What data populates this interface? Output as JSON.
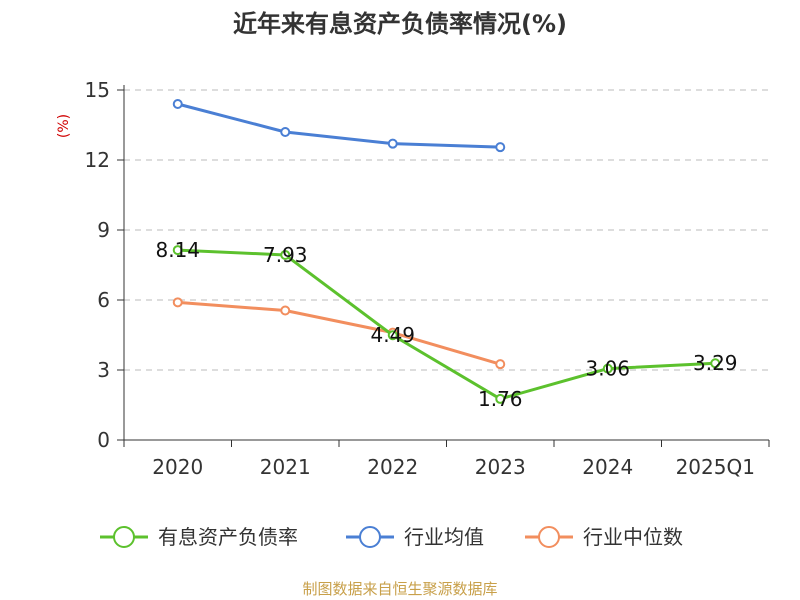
{
  "chart_data": {
    "type": "line",
    "title": "近年来有息资产负债率情况(%)",
    "ylabel": "(%)",
    "xlabel": "",
    "categories": [
      "2020",
      "2021",
      "2022",
      "2023",
      "2024",
      "2025Q1"
    ],
    "ylim": [
      0,
      15
    ],
    "yticks": [
      0,
      3,
      6,
      9,
      12,
      15
    ],
    "grid": true,
    "legend_position": "bottom",
    "series": [
      {
        "name": "有息资产负债率",
        "color": "#5cc12d",
        "values": [
          8.14,
          7.93,
          4.49,
          1.76,
          3.06,
          3.29
        ],
        "labels": [
          "8.14",
          "7.93",
          "4.49",
          "1.76",
          "3.06",
          "3.29"
        ]
      },
      {
        "name": "行业均值",
        "color": "#4a7fd4",
        "values": [
          14.4,
          13.2,
          12.7,
          12.55,
          null,
          null
        ]
      },
      {
        "name": "行业中位数",
        "color": "#f28e5e",
        "values": [
          5.9,
          5.55,
          4.6,
          3.25,
          null,
          null
        ]
      }
    ]
  },
  "source": "制图数据来自恒生聚源数据库"
}
